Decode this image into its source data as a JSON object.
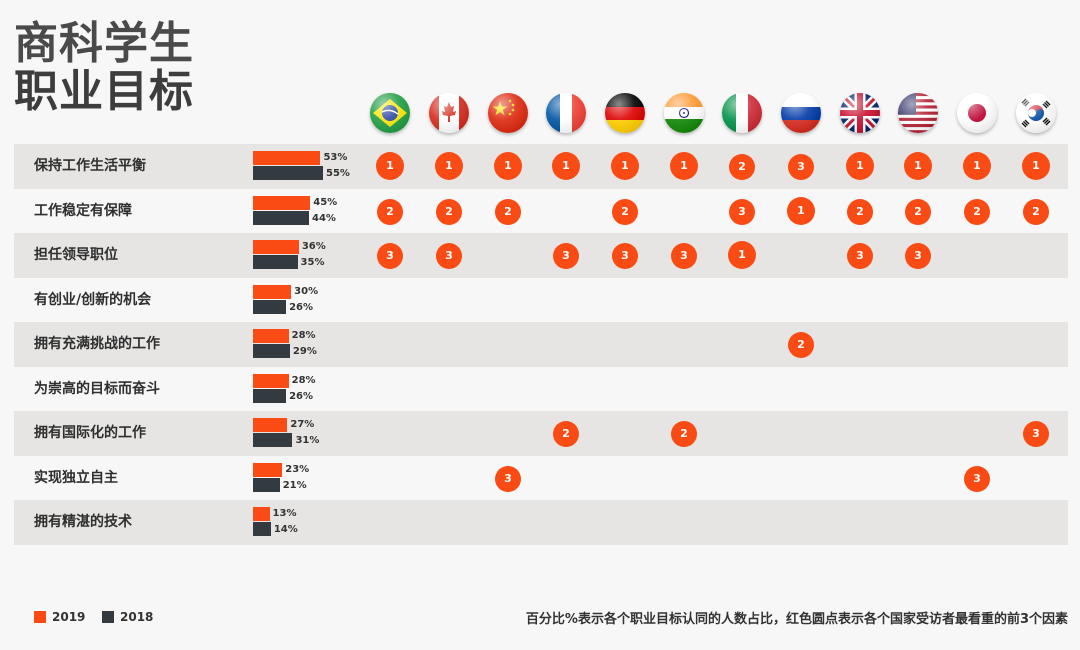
{
  "title": {
    "line1": "商科学生",
    "line2": "职业目标"
  },
  "countries": [
    {
      "name": "brazil-flag-icon"
    },
    {
      "name": "canada-flag-icon"
    },
    {
      "name": "china-flag-icon"
    },
    {
      "name": "france-flag-icon"
    },
    {
      "name": "germany-flag-icon"
    },
    {
      "name": "india-flag-icon"
    },
    {
      "name": "italy-flag-icon"
    },
    {
      "name": "russia-flag-icon"
    },
    {
      "name": "uk-flag-icon"
    },
    {
      "name": "usa-flag-icon"
    },
    {
      "name": "japan-flag-icon"
    },
    {
      "name": "south-korea-flag-icon"
    }
  ],
  "legend": [
    {
      "label": "2019",
      "color": "#fa4b14"
    },
    {
      "label": "2018",
      "color": "#333a40"
    }
  ],
  "note": "百分比%表示各个职业目标认同的人数占比，红色圆点表示各个国家受访者最看重的前3个因素",
  "chart_data": {
    "type": "bar",
    "orientation": "horizontal",
    "categories": [
      "保持工作生活平衡",
      "工作稳定有保障",
      "担任领导职位",
      "有创业/创新的机会",
      "拥有充满挑战的工作",
      "为崇高的目标而奋斗",
      "拥有国际化的工作",
      "实现独立自主",
      "拥有精湛的技术"
    ],
    "series": [
      {
        "name": "2019",
        "values": [
          53,
          45,
          36,
          30,
          28,
          28,
          27,
          23,
          13
        ],
        "labels": [
          "53%",
          "45%",
          "36%",
          "30%",
          "28%",
          "28%",
          "27%",
          "23%",
          "13%"
        ]
      },
      {
        "name": "2018",
        "values": [
          55,
          44,
          35,
          26,
          29,
          26,
          31,
          21,
          14
        ],
        "labels": [
          "55%",
          "44%",
          "35%",
          "26%",
          "29%",
          "26%",
          "31%",
          "21%",
          "14%"
        ]
      }
    ],
    "xlim": [
      0,
      100
    ],
    "country_ranks": [
      [
        1,
        1,
        1,
        1,
        1,
        1,
        2,
        3,
        1,
        1,
        1,
        1
      ],
      [
        2,
        2,
        2,
        null,
        2,
        null,
        3,
        1,
        2,
        2,
        2,
        2
      ],
      [
        3,
        3,
        null,
        3,
        3,
        3,
        1,
        null,
        3,
        3,
        null,
        null
      ],
      [
        null,
        null,
        null,
        null,
        null,
        null,
        null,
        null,
        null,
        null,
        null,
        null
      ],
      [
        null,
        null,
        null,
        null,
        null,
        null,
        null,
        2,
        null,
        null,
        null,
        null
      ],
      [
        null,
        null,
        null,
        null,
        null,
        null,
        null,
        null,
        null,
        null,
        null,
        null
      ],
      [
        null,
        null,
        null,
        2,
        null,
        2,
        null,
        null,
        null,
        null,
        null,
        3
      ],
      [
        null,
        null,
        3,
        null,
        null,
        null,
        null,
        null,
        null,
        null,
        3,
        null
      ],
      [
        null,
        null,
        null,
        null,
        null,
        null,
        null,
        null,
        null,
        null,
        null,
        null
      ]
    ]
  }
}
